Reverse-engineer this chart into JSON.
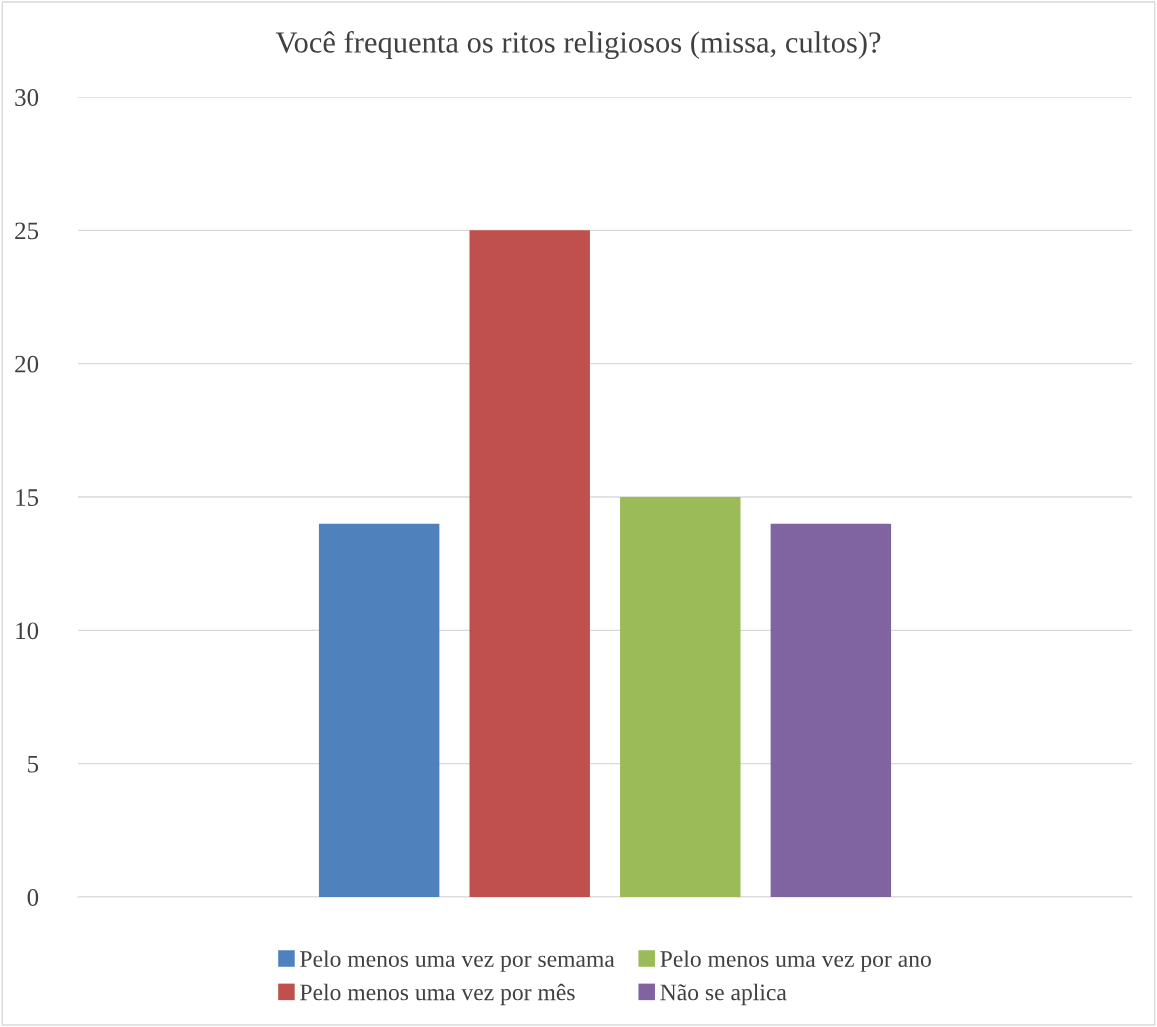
{
  "chart_data": {
    "type": "bar",
    "title": "Você frequenta os ritos religiosos (missa, cultos)?",
    "categories": [
      null
    ],
    "series": [
      {
        "name": "Pelo menos uma vez por semama",
        "color": "#4f81bd",
        "values": [
          14
        ]
      },
      {
        "name": "Pelo menos uma vez por mês",
        "color": "#c0504d",
        "values": [
          25
        ]
      },
      {
        "name": "Pelo menos uma vez por ano",
        "color": "#9bbb59",
        "values": [
          15
        ]
      },
      {
        "name": "Não se aplica",
        "color": "#8064a2",
        "values": [
          14
        ]
      }
    ],
    "ylim": [
      0,
      30
    ],
    "yticks": [
      0,
      5,
      10,
      15,
      20,
      25,
      30
    ],
    "grid": "y",
    "legend": "bottom",
    "tick_labels": "y"
  }
}
